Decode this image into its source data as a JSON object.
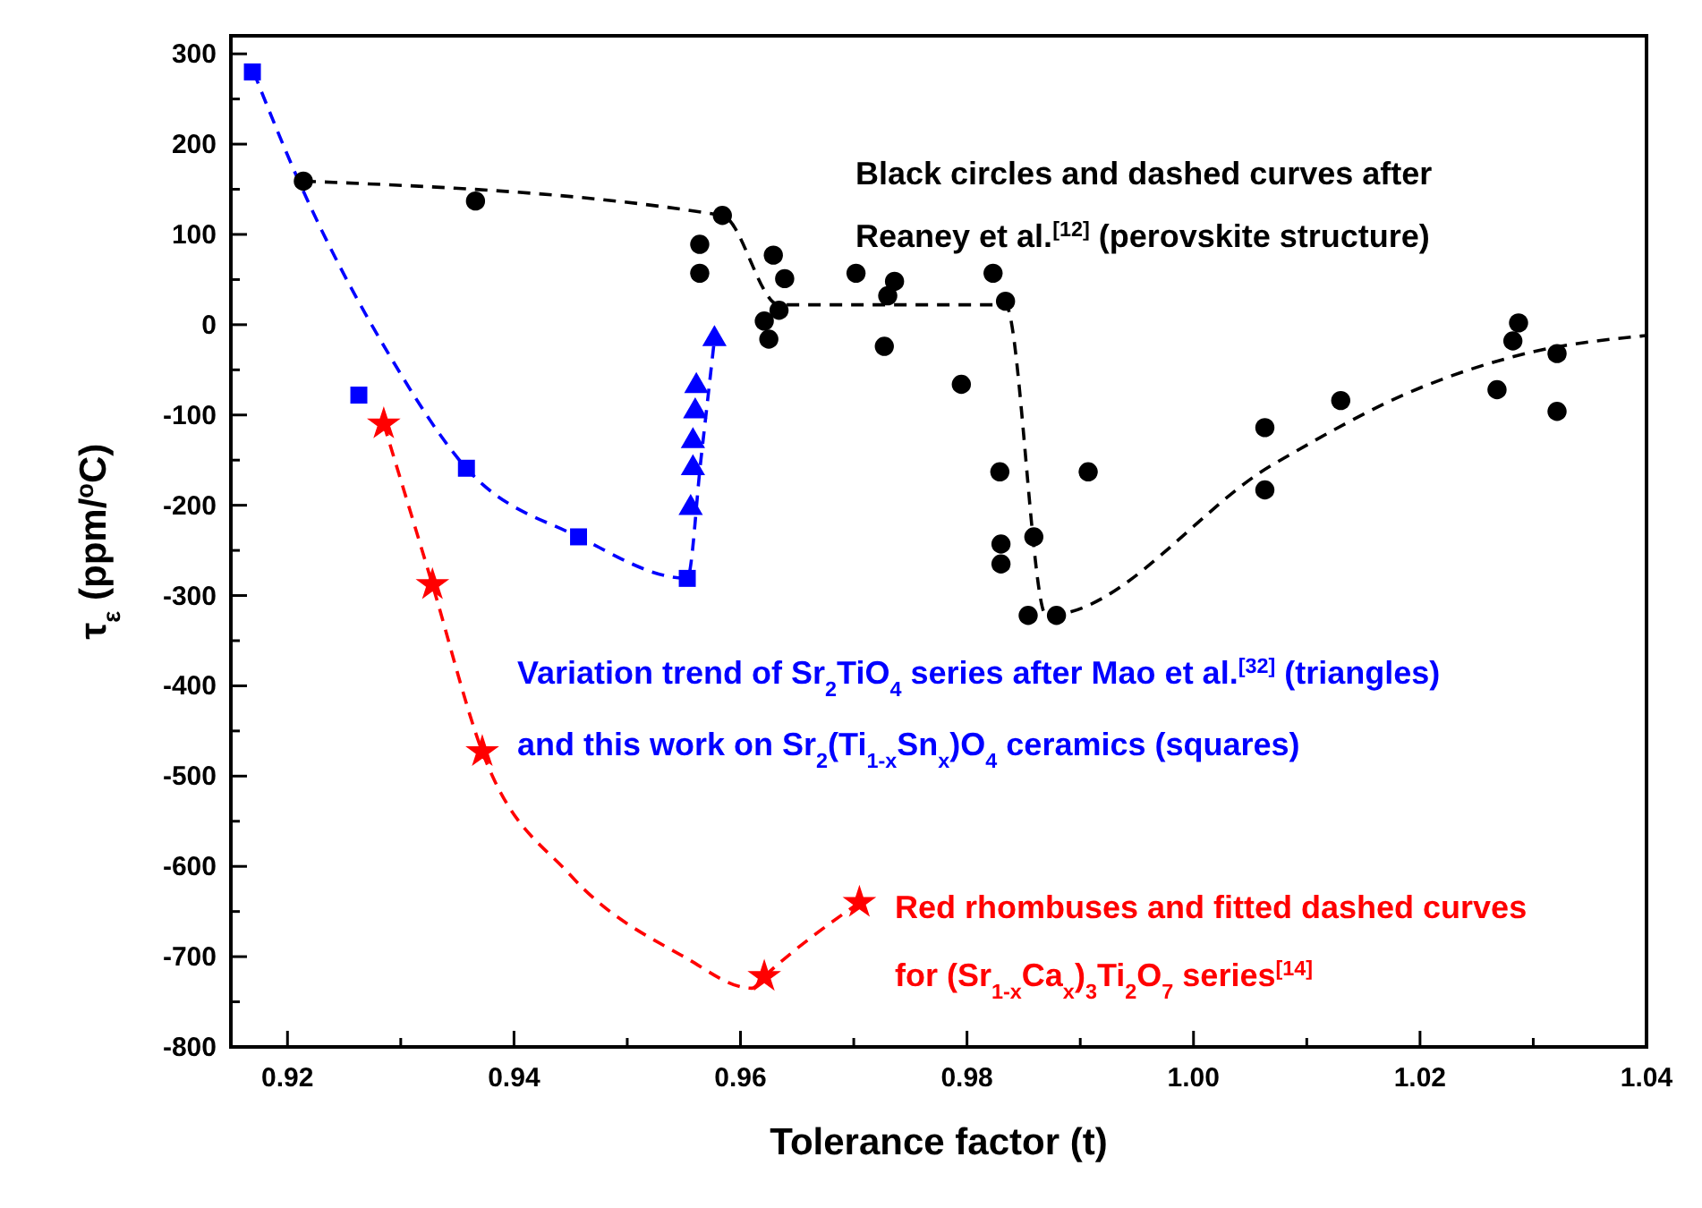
{
  "chart_data": {
    "type": "scatter",
    "xlabel": "Tolerance factor (t)",
    "ylabel": "τ$_{ε}$ (ppm/$^{o}$C)",
    "xlim": [
      0.915,
      1.04
    ],
    "xticks": [
      0.92,
      {
        "value": 0.93,
        "label": null
      },
      0.94,
      {
        "value": 0.95,
        "label": null
      },
      0.96,
      {
        "value": 0.97,
        "label": null
      },
      0.98,
      {
        "value": 0.99,
        "label": null
      },
      {
        "value": 1,
        "label": "1.00"
      },
      {
        "value": 1.01,
        "label": null
      },
      1.02,
      {
        "value": 1.03,
        "label": null
      },
      1.04
    ],
    "ylim": [
      -800,
      320
    ],
    "yticks": [
      -800,
      {
        "value": -750,
        "label": null
      },
      -700,
      {
        "value": -650,
        "label": null
      },
      -600,
      {
        "value": -550,
        "label": null
      },
      -500,
      {
        "value": -450,
        "label": null
      },
      -400,
      {
        "value": -350,
        "label": null
      },
      -300,
      {
        "value": -250,
        "label": null
      },
      -200,
      {
        "value": -150,
        "label": null
      },
      -100,
      {
        "value": -50,
        "label": null
      },
      0,
      {
        "value": 50,
        "label": null
      },
      100,
      {
        "value": 150,
        "label": null
      },
      200,
      {
        "value": 250,
        "label": null
      },
      300
    ],
    "grid": false,
    "series": [
      {
        "type": "line",
        "color": "#000000",
        "marker": "none",
        "line_style": "dashed",
        "x": [
          0.9214,
          0.9584,
          0.9634,
          0.9834,
          0.987,
          1.007,
          1.02,
          1.03,
          1.04
        ],
        "values": [
          159,
          121,
          22,
          22,
          -322,
          -155,
          -70,
          -30,
          -12
        ]
      },
      {
        "type": "line",
        "color": "#0000ff",
        "marker": "none",
        "line_style": "dashed",
        "x": [
          0.917,
          0.921,
          0.9291,
          0.9358,
          0.9457,
          0.9553,
          0.9565,
          0.9577
        ],
        "values": [
          280,
          159,
          -36,
          -159,
          -235,
          -281,
          -150,
          -16
        ]
      },
      {
        "type": "line",
        "color": "#ff0000",
        "marker": "none",
        "line_style": "dashed",
        "x": [
          0.9285,
          0.9328,
          0.9372,
          0.945,
          0.955,
          0.961,
          0.9621,
          0.9705
        ],
        "values": [
          -110,
          -288,
          -473,
          -610,
          -700,
          -735,
          -722,
          -640
        ]
      },
      {
        "color": "#000000",
        "marker": "circle",
        "x": [
          0.9214,
          0.9366,
          0.9584,
          0.9564,
          0.9564,
          0.9629,
          0.9639,
          0.9634,
          0.9621,
          0.9625,
          0.9702,
          0.9736,
          0.973,
          0.9727,
          0.9823,
          0.9834,
          0.9795,
          0.9829,
          0.9907,
          0.9859,
          0.983,
          0.983,
          0.9854,
          0.9879,
          1.0063,
          1.0063,
          1.013,
          1.0268,
          1.0282,
          1.0287,
          1.0321,
          1.0321
        ],
        "values": [
          159,
          137,
          121,
          89,
          57,
          77,
          51,
          16,
          4,
          -16,
          57,
          48,
          32,
          -24,
          57,
          26,
          -66,
          -163,
          -163,
          -235,
          -243,
          -265,
          -322,
          -322,
          -114,
          -183,
          -84,
          -72,
          -18,
          2,
          -32,
          -96
        ]
      },
      {
        "color": "#0000ff",
        "marker": "square",
        "x": [
          0.9169,
          0.9263,
          0.9358,
          0.9457,
          0.9553
        ],
        "values": [
          280,
          -78,
          -159,
          -235,
          -281
        ]
      },
      {
        "color": "#0000ff",
        "marker": "triangle",
        "x": [
          0.9556,
          0.9558,
          0.9558,
          0.956,
          0.9561,
          0.9577
        ],
        "values": [
          -203,
          -159,
          -129,
          -96,
          -68,
          -16
        ]
      },
      {
        "color": "#ff0000",
        "marker": "star",
        "x": [
          0.9285,
          0.9328,
          0.9372,
          0.9621,
          0.9705
        ],
        "values": [
          -110,
          -288,
          -473,
          -722,
          -640
        ]
      }
    ],
    "annotations": [
      "Black circles and dashed curves after",
      "Reaney et al.$^{[12]}$ (perovskite structure)",
      "Variation trend of Sr$_{2}$TiO$_{4}$ series after Mao et al.$^{[32]}$ (triangles)",
      "and this work on Sr$_{2}$(Ti$_{1-x}$Sn$_{x}$)O$_{4}$ ceramics (squares)",
      "Red rhombuses and fitted dashed curves",
      "for (Sr$_{1-x}$Ca$_{x}$)$_{3}$Ti$_{2}$O$_{7}$ series$^{[14]}$"
    ]
  }
}
